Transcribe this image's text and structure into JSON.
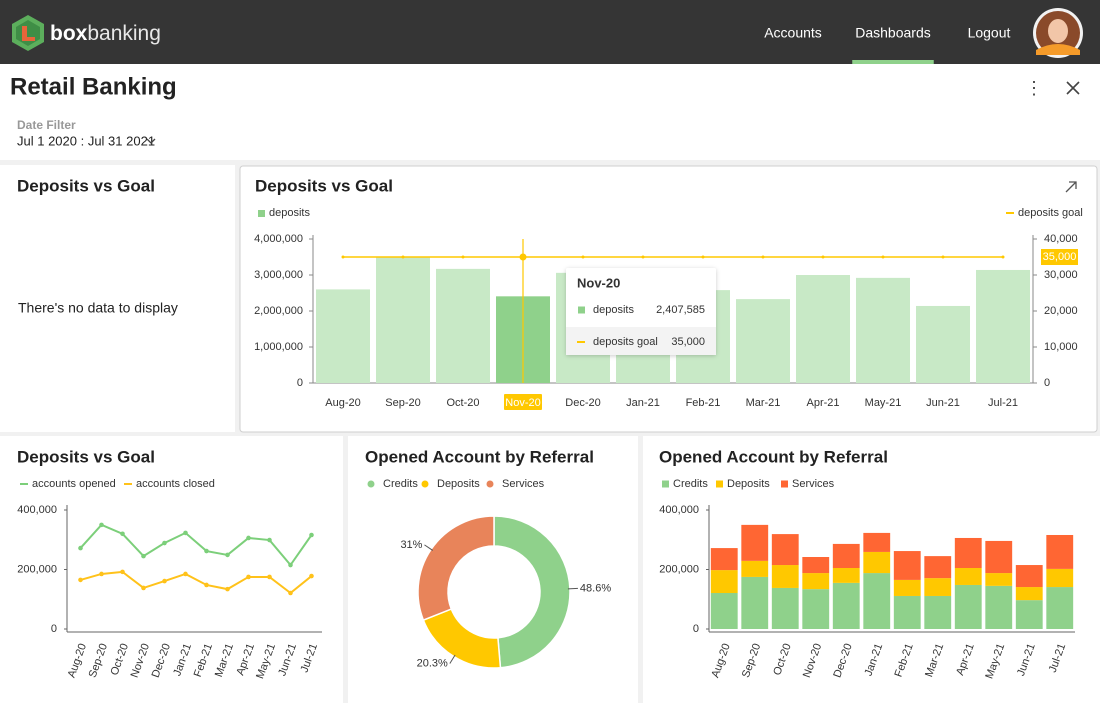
{
  "header": {
    "brand_bold": "box",
    "brand_light": "banking",
    "nav": [
      "Accounts",
      "Dashboards",
      "Logout"
    ],
    "active": "Dashboards"
  },
  "page": {
    "title": "Retail Banking",
    "filter_label": "Date Filter",
    "filter_value": "Jul 1 2020 : Jul 31 2021"
  },
  "empty_panel": {
    "title": "Deposits vs Goal",
    "message": "There's no data to display"
  },
  "chart_data": [
    {
      "type": "combo",
      "title": "Deposits vs Goal",
      "categories": [
        "Aug-20",
        "Sep-20",
        "Oct-20",
        "Nov-20",
        "Dec-20",
        "Jan-21",
        "Feb-21",
        "Mar-21",
        "Apr-21",
        "May-21",
        "Jun-21",
        "Jul-21"
      ],
      "series": [
        {
          "name": "deposits",
          "color": "#c8e9c6",
          "highlight_color": "#8fd18b",
          "values": [
            2600000,
            3500000,
            3170000,
            2407585,
            3060000,
            2700000,
            2580000,
            2330000,
            3000000,
            2920000,
            2140000,
            3140000
          ]
        },
        {
          "name": "deposits goal",
          "color": "#ffc800",
          "axis": "y2",
          "values": [
            35000,
            35000,
            35000,
            35000,
            35000,
            35000,
            35000,
            35000,
            35000,
            35000,
            35000,
            35000
          ]
        }
      ],
      "ylim": [
        0,
        4000000
      ],
      "yticks": [
        0,
        {
          "value": 1000000,
          "label": "1,000,000"
        },
        {
          "value": 2000000,
          "label": "2,000,000"
        },
        {
          "value": 3000000,
          "label": "3,000,000"
        },
        {
          "value": 4000000,
          "label": "4,000,000"
        }
      ],
      "y2lim": [
        0,
        40000
      ],
      "y2ticks": [
        0,
        {
          "value": 10000,
          "label": "10,000"
        },
        {
          "value": 20000,
          "label": "20,000"
        },
        {
          "value": 30000,
          "label": "30,000"
        },
        {
          "value": 40000,
          "label": "40,000"
        }
      ],
      "tooltip": {
        "title": "Nov-20",
        "values": [
          "2,407,585",
          "35,000"
        ]
      }
    },
    {
      "type": "line",
      "title": "Deposits vs Goal",
      "categories": [
        "Aug-20",
        "Sep-20",
        "Oct-20",
        "Nov-20",
        "Dec-20",
        "Jan-21",
        "Feb-21",
        "Mar-21",
        "Apr-21",
        "May-21",
        "Jun-21",
        "Jul-21"
      ],
      "series": [
        {
          "name": "accounts opened",
          "color": "#7ccf7a",
          "values": [
            272000,
            350000,
            320000,
            245000,
            289000,
            323000,
            262000,
            249000,
            306000,
            299000,
            215000,
            316000
          ]
        },
        {
          "name": "accounts closed",
          "color": "#ffc21a",
          "values": [
            165000,
            185000,
            192000,
            138000,
            161000,
            185000,
            148000,
            134000,
            175000,
            175000,
            121000,
            178000
          ]
        }
      ],
      "ylim": [
        0,
        400000
      ],
      "yticks": [
        0,
        {
          "value": 200000,
          "label": "200,000"
        },
        {
          "value": 400000,
          "label": "400,000"
        }
      ]
    },
    {
      "type": "donut",
      "title": "Opened Account by Referral",
      "categories": [
        "Credits",
        "Deposits",
        "Services"
      ],
      "values": [
        48.6,
        20.3,
        31
      ],
      "value_labels": [
        "48.6%",
        "20.3%",
        "31%"
      ],
      "colors": [
        "#8fd18b",
        "#ffc800",
        "#e8845a"
      ]
    },
    {
      "type": "stacked_bar",
      "title": "Opened Account by Referral",
      "categories": [
        "Aug-20",
        "Sep-20",
        "Oct-20",
        "Nov-20",
        "Dec-20",
        "Jan-21",
        "Feb-21",
        "Mar-21",
        "Apr-21",
        "May-21",
        "Jun-21",
        "Jul-21"
      ],
      "series": [
        {
          "name": "Credits",
          "color": "#8fd18b",
          "values": [
            121000,
            175000,
            138000,
            134000,
            155000,
            188000,
            111000,
            111000,
            148000,
            145000,
            97000,
            141000
          ]
        },
        {
          "name": "Deposits",
          "color": "#ffc800",
          "values": [
            77000,
            54000,
            77000,
            54000,
            50000,
            71000,
            54000,
            60000,
            57000,
            43000,
            44000,
            61000
          ]
        },
        {
          "name": "Services",
          "color": "#ff6633",
          "values": [
            74000,
            121000,
            104000,
            54000,
            81000,
            64000,
            97000,
            74000,
            101000,
            108000,
            74000,
            114000
          ]
        }
      ],
      "ylim": [
        0,
        400000
      ],
      "yticks": [
        0,
        {
          "value": 200000,
          "label": "200,000"
        },
        {
          "value": 400000,
          "label": "400,000"
        }
      ]
    }
  ]
}
